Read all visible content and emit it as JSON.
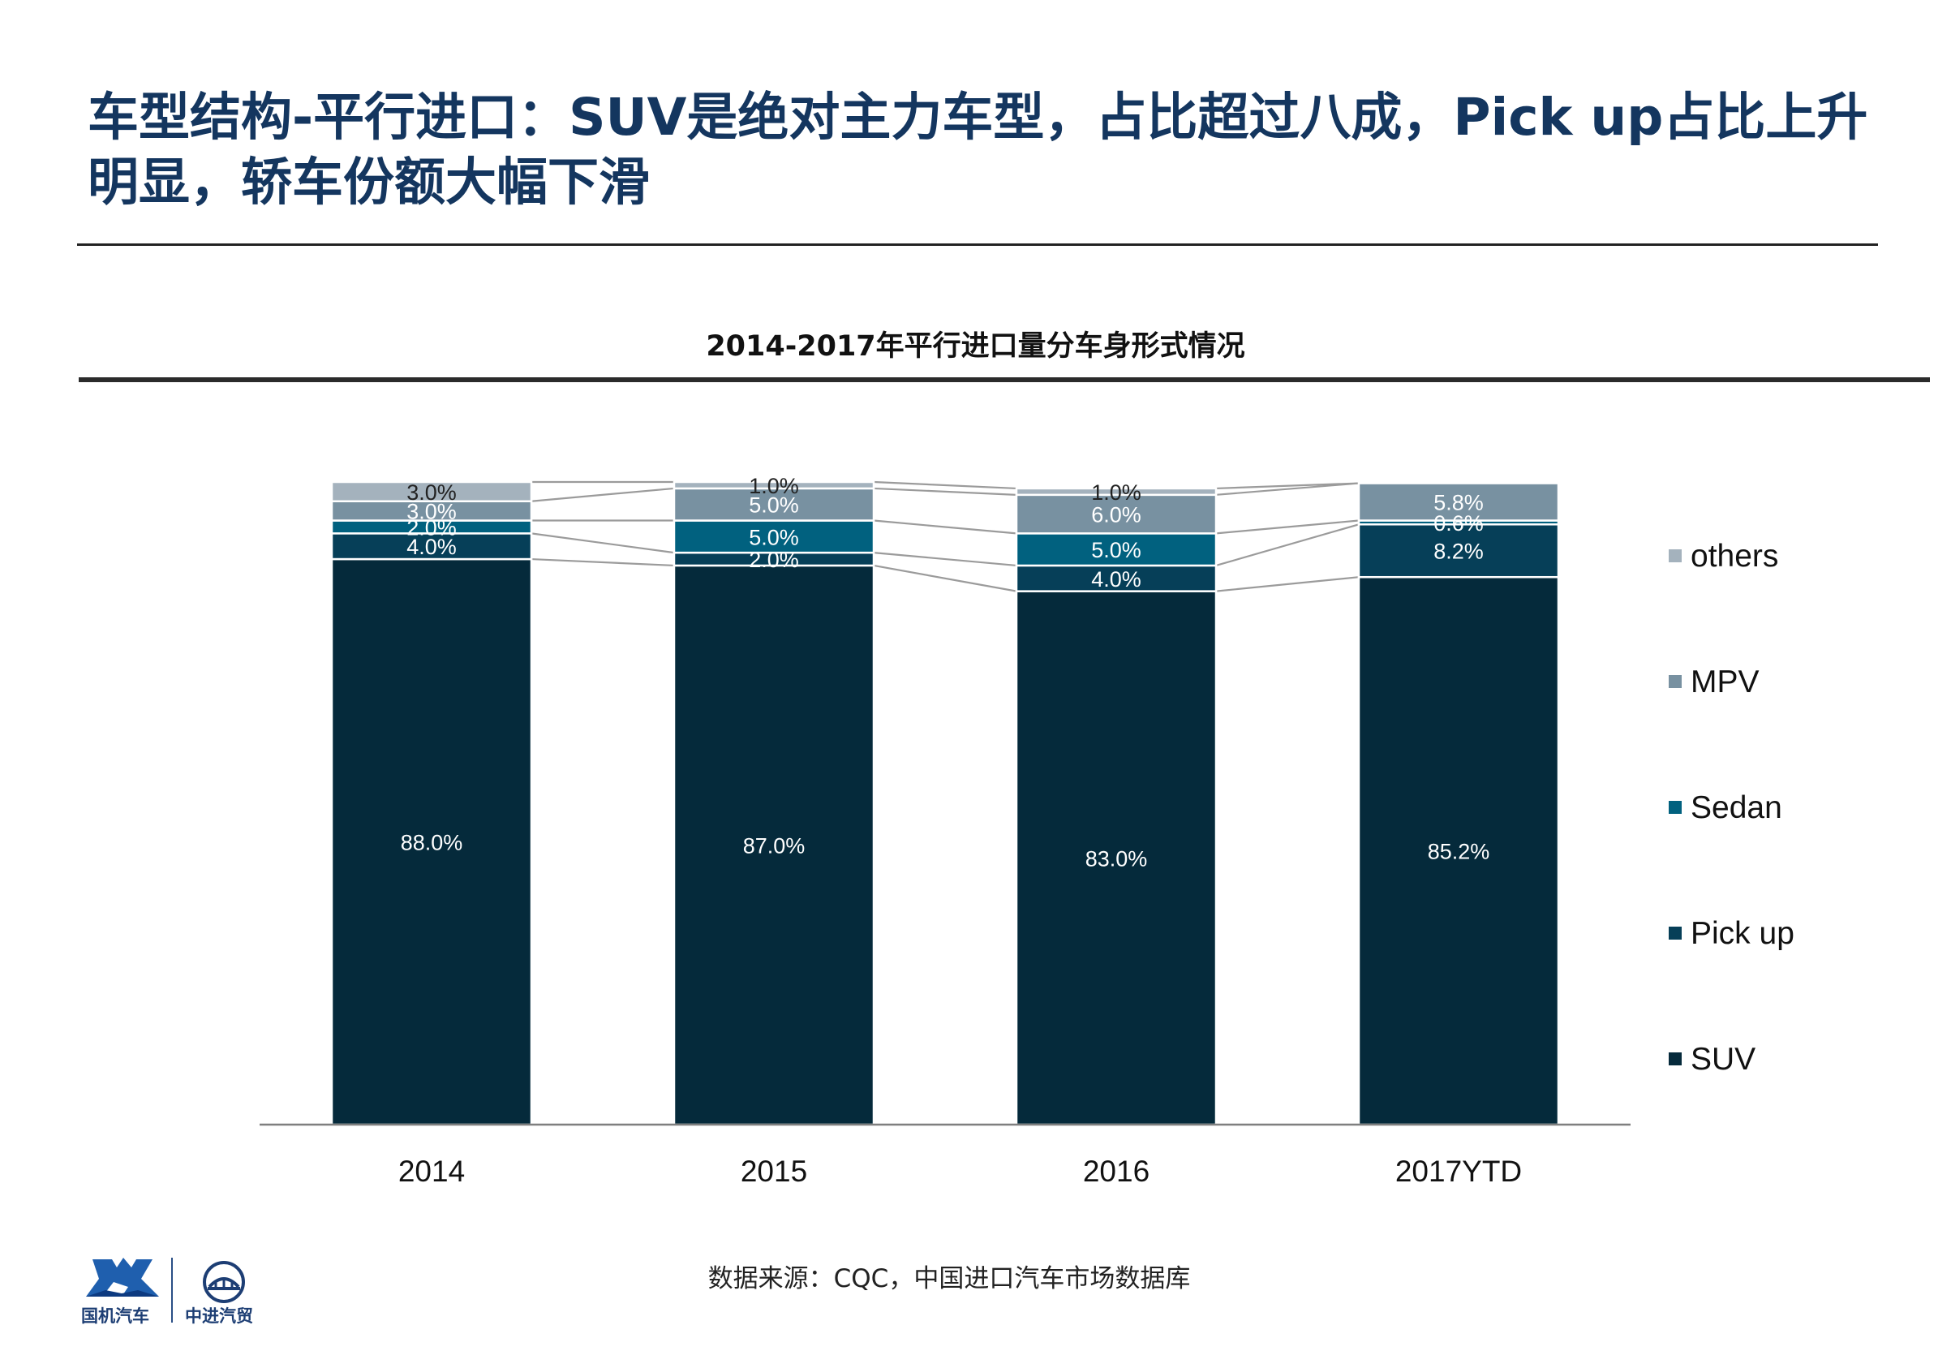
{
  "page": {
    "title": "车型结构-平行进口：SUV是绝对主力车型，占比超过八成，Pick up占比上升明显，轿车份额大幅下滑",
    "source_note": "数据来源：CQC，中国进口汽车市场数据库",
    "logo_left_text": "国机汽车",
    "logo_right_text": "中进汽贸"
  },
  "colors": {
    "SUV": "#052a3b",
    "Pick up": "#063f58",
    "Sedan": "#01617f",
    "MPV": "#7891a1",
    "others": "#a4b2bd",
    "connector": "#9b9b9b",
    "title": "#14365f"
  },
  "chart_data": {
    "type": "bar",
    "stacked": true,
    "title": "2014-2017年平行进口量分车身形式情况",
    "categories": [
      "2014",
      "2015",
      "2016",
      "2017YTD"
    ],
    "series": [
      {
        "name": "SUV",
        "values": [
          88.0,
          87.0,
          83.0,
          85.2
        ]
      },
      {
        "name": "Pick up",
        "values": [
          4.0,
          2.0,
          4.0,
          8.2
        ]
      },
      {
        "name": "Sedan",
        "values": [
          2.0,
          5.0,
          5.0,
          0.6
        ]
      },
      {
        "name": "MPV",
        "values": [
          3.0,
          5.0,
          6.0,
          5.8
        ]
      },
      {
        "name": "others",
        "values": [
          3.0,
          1.0,
          1.0,
          0.0
        ]
      }
    ],
    "data_labels": [
      [
        "88.0%",
        "87.0%",
        "83.0%",
        "85.2%"
      ],
      [
        "4.0%",
        "2.0%",
        "4.0%",
        "8.2%"
      ],
      [
        "2.0%",
        "5.0%",
        "5.0%",
        "0.6%"
      ],
      [
        "3.0%",
        "5.0%",
        "6.0%",
        "5.8%"
      ],
      [
        "3.0%",
        "1.0%",
        "1.0%",
        ""
      ]
    ],
    "legend_order": [
      "others",
      "MPV",
      "Sedan",
      "Pick up",
      "SUV"
    ],
    "legend_position": "right",
    "ylim": [
      0,
      100
    ],
    "grid": false,
    "series_lines": true
  }
}
